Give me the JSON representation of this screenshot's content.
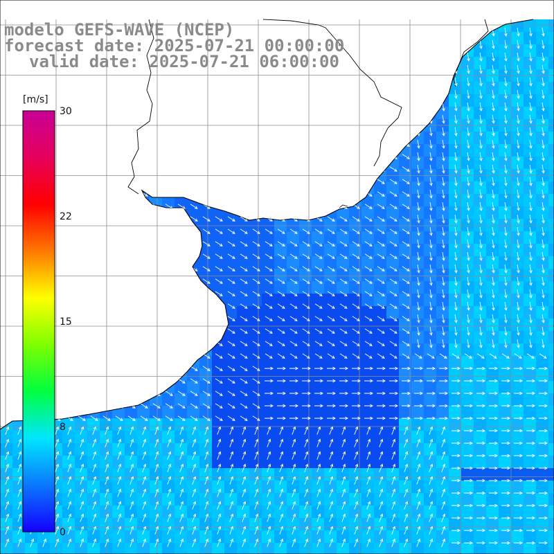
{
  "title": {
    "model": "modelo GEFS-WAVE (NCEP)",
    "forecast": "forecast date: 2025-07-21 00:00:00",
    "valid": "valid date: 2025-07-21 06:00:00"
  },
  "colorbar": {
    "unit": "[m/s]",
    "min": 0,
    "max": 30,
    "ticks": [
      "30",
      "22",
      "15",
      "8",
      "0"
    ],
    "tick_values": [
      30,
      22,
      15,
      8,
      0
    ],
    "colors": [
      "#1400ff",
      "#0a78ff",
      "#00e6ff",
      "#00ff40",
      "#7dff00",
      "#ffff00",
      "#ff7800",
      "#ff0000",
      "#e6005a",
      "#c80096"
    ]
  },
  "map": {
    "variable": "wind speed and direction",
    "land_color": "#ffffff",
    "coast_color": "#000000",
    "grid_color": "#7f7f7f"
  }
}
